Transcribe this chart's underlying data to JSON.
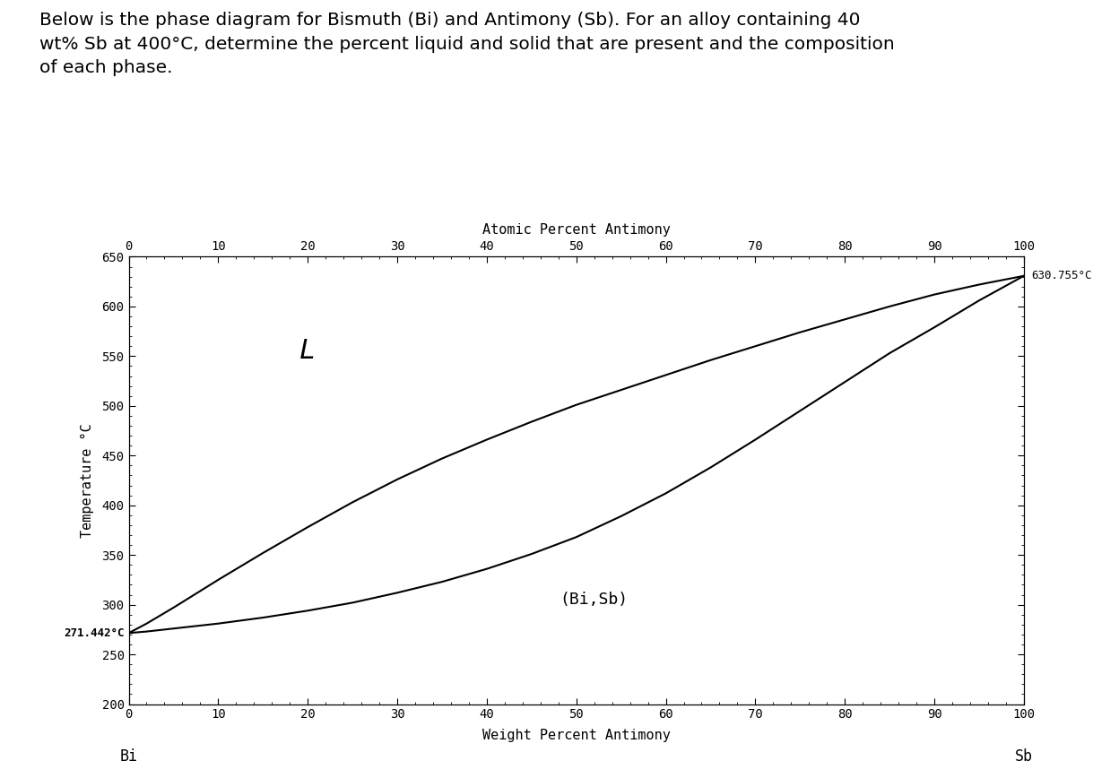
{
  "title_text": "Below is the phase diagram for Bismuth (Bi) and Antimony (Sb). For an alloy containing 40\nwt% Sb at 400°C, determine the percent liquid and solid that are present and the composition\nof each phase.",
  "top_xlabel": "Atomic Percent Antimony",
  "bottom_xlabel": "Weight Percent Antimony",
  "ylabel": "Temperature °C",
  "bottom_label_left": "Bi",
  "bottom_label_right": "Sb",
  "xlim": [
    0,
    100
  ],
  "ylim": [
    200,
    650
  ],
  "yticks": [
    200,
    250,
    300,
    350,
    400,
    450,
    500,
    550,
    600,
    650
  ],
  "xticks_bottom": [
    0,
    10,
    20,
    30,
    40,
    50,
    60,
    70,
    80,
    90,
    100
  ],
  "xticks_top": [
    0,
    10,
    20,
    30,
    40,
    50,
    60,
    70,
    80,
    90,
    100
  ],
  "label_bi_temp": "271.442°C",
  "label_sb_temp": "630.755°C",
  "label_L": "L",
  "label_BiSb": "(Bi,Sb)",
  "liquidus_x": [
    0,
    2,
    5,
    10,
    15,
    20,
    25,
    30,
    35,
    40,
    45,
    50,
    55,
    60,
    65,
    70,
    75,
    80,
    85,
    90,
    95,
    100
  ],
  "liquidus_y": [
    271.442,
    281,
    297,
    325,
    352,
    378,
    403,
    426,
    447,
    466,
    484,
    501,
    516,
    531,
    546,
    560,
    574,
    587,
    600,
    612,
    622,
    630.755
  ],
  "solidus_x": [
    0,
    2,
    5,
    10,
    15,
    20,
    25,
    30,
    35,
    40,
    45,
    50,
    55,
    60,
    65,
    70,
    75,
    80,
    85,
    90,
    95,
    100
  ],
  "solidus_y": [
    271.442,
    273,
    276,
    281,
    287,
    294,
    302,
    312,
    323,
    336,
    351,
    368,
    389,
    412,
    438,
    466,
    495,
    524,
    553,
    579,
    606,
    630.755
  ],
  "line_color": "#000000",
  "background_color": "#ffffff"
}
